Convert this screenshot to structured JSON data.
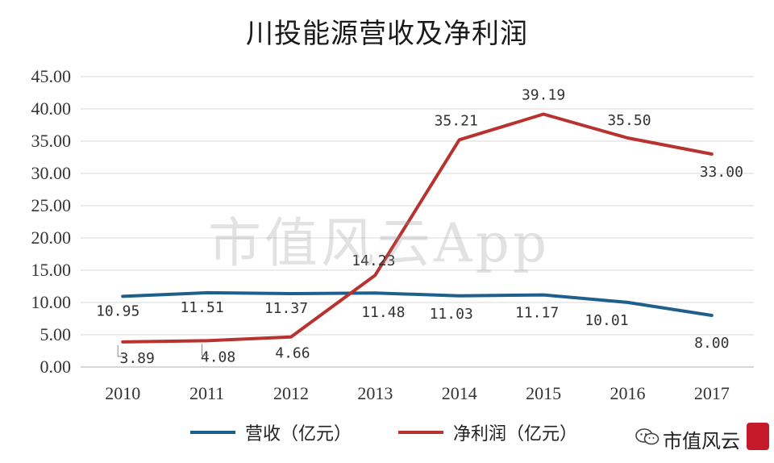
{
  "chart_data": {
    "type": "line",
    "title": "川投能源营收及净利润",
    "categories": [
      "2010",
      "2011",
      "2012",
      "2013",
      "2014",
      "2015",
      "2016",
      "2017"
    ],
    "ylim": [
      0,
      45
    ],
    "yticks": [
      "0.00",
      "5.00",
      "10.00",
      "15.00",
      "20.00",
      "25.00",
      "30.00",
      "35.00",
      "40.00",
      "45.00"
    ],
    "grid": true,
    "legend_position": "bottom",
    "series": [
      {
        "name": "营收（亿元）",
        "color": "#1f5f8b",
        "values": [
          10.95,
          11.51,
          11.37,
          11.48,
          11.03,
          11.17,
          10.01,
          8.0
        ],
        "labels": [
          "10.95",
          "11.51",
          "11.37",
          "11.48",
          "11.03",
          "11.17",
          "10.01",
          "8.00"
        ]
      },
      {
        "name": "净利润（亿元）",
        "color": "#b83230",
        "values": [
          3.89,
          4.08,
          4.66,
          14.23,
          35.21,
          39.19,
          35.5,
          33.0
        ],
        "labels": [
          "3.89",
          "4.08",
          "4.66",
          "14.23",
          "35.21",
          "39.19",
          "35.50",
          "33.00"
        ]
      }
    ]
  },
  "watermark": "市值风云App",
  "brand": {
    "name": "市值风云",
    "icon": "wechat-icon",
    "seal_color": "#c41a2a"
  }
}
